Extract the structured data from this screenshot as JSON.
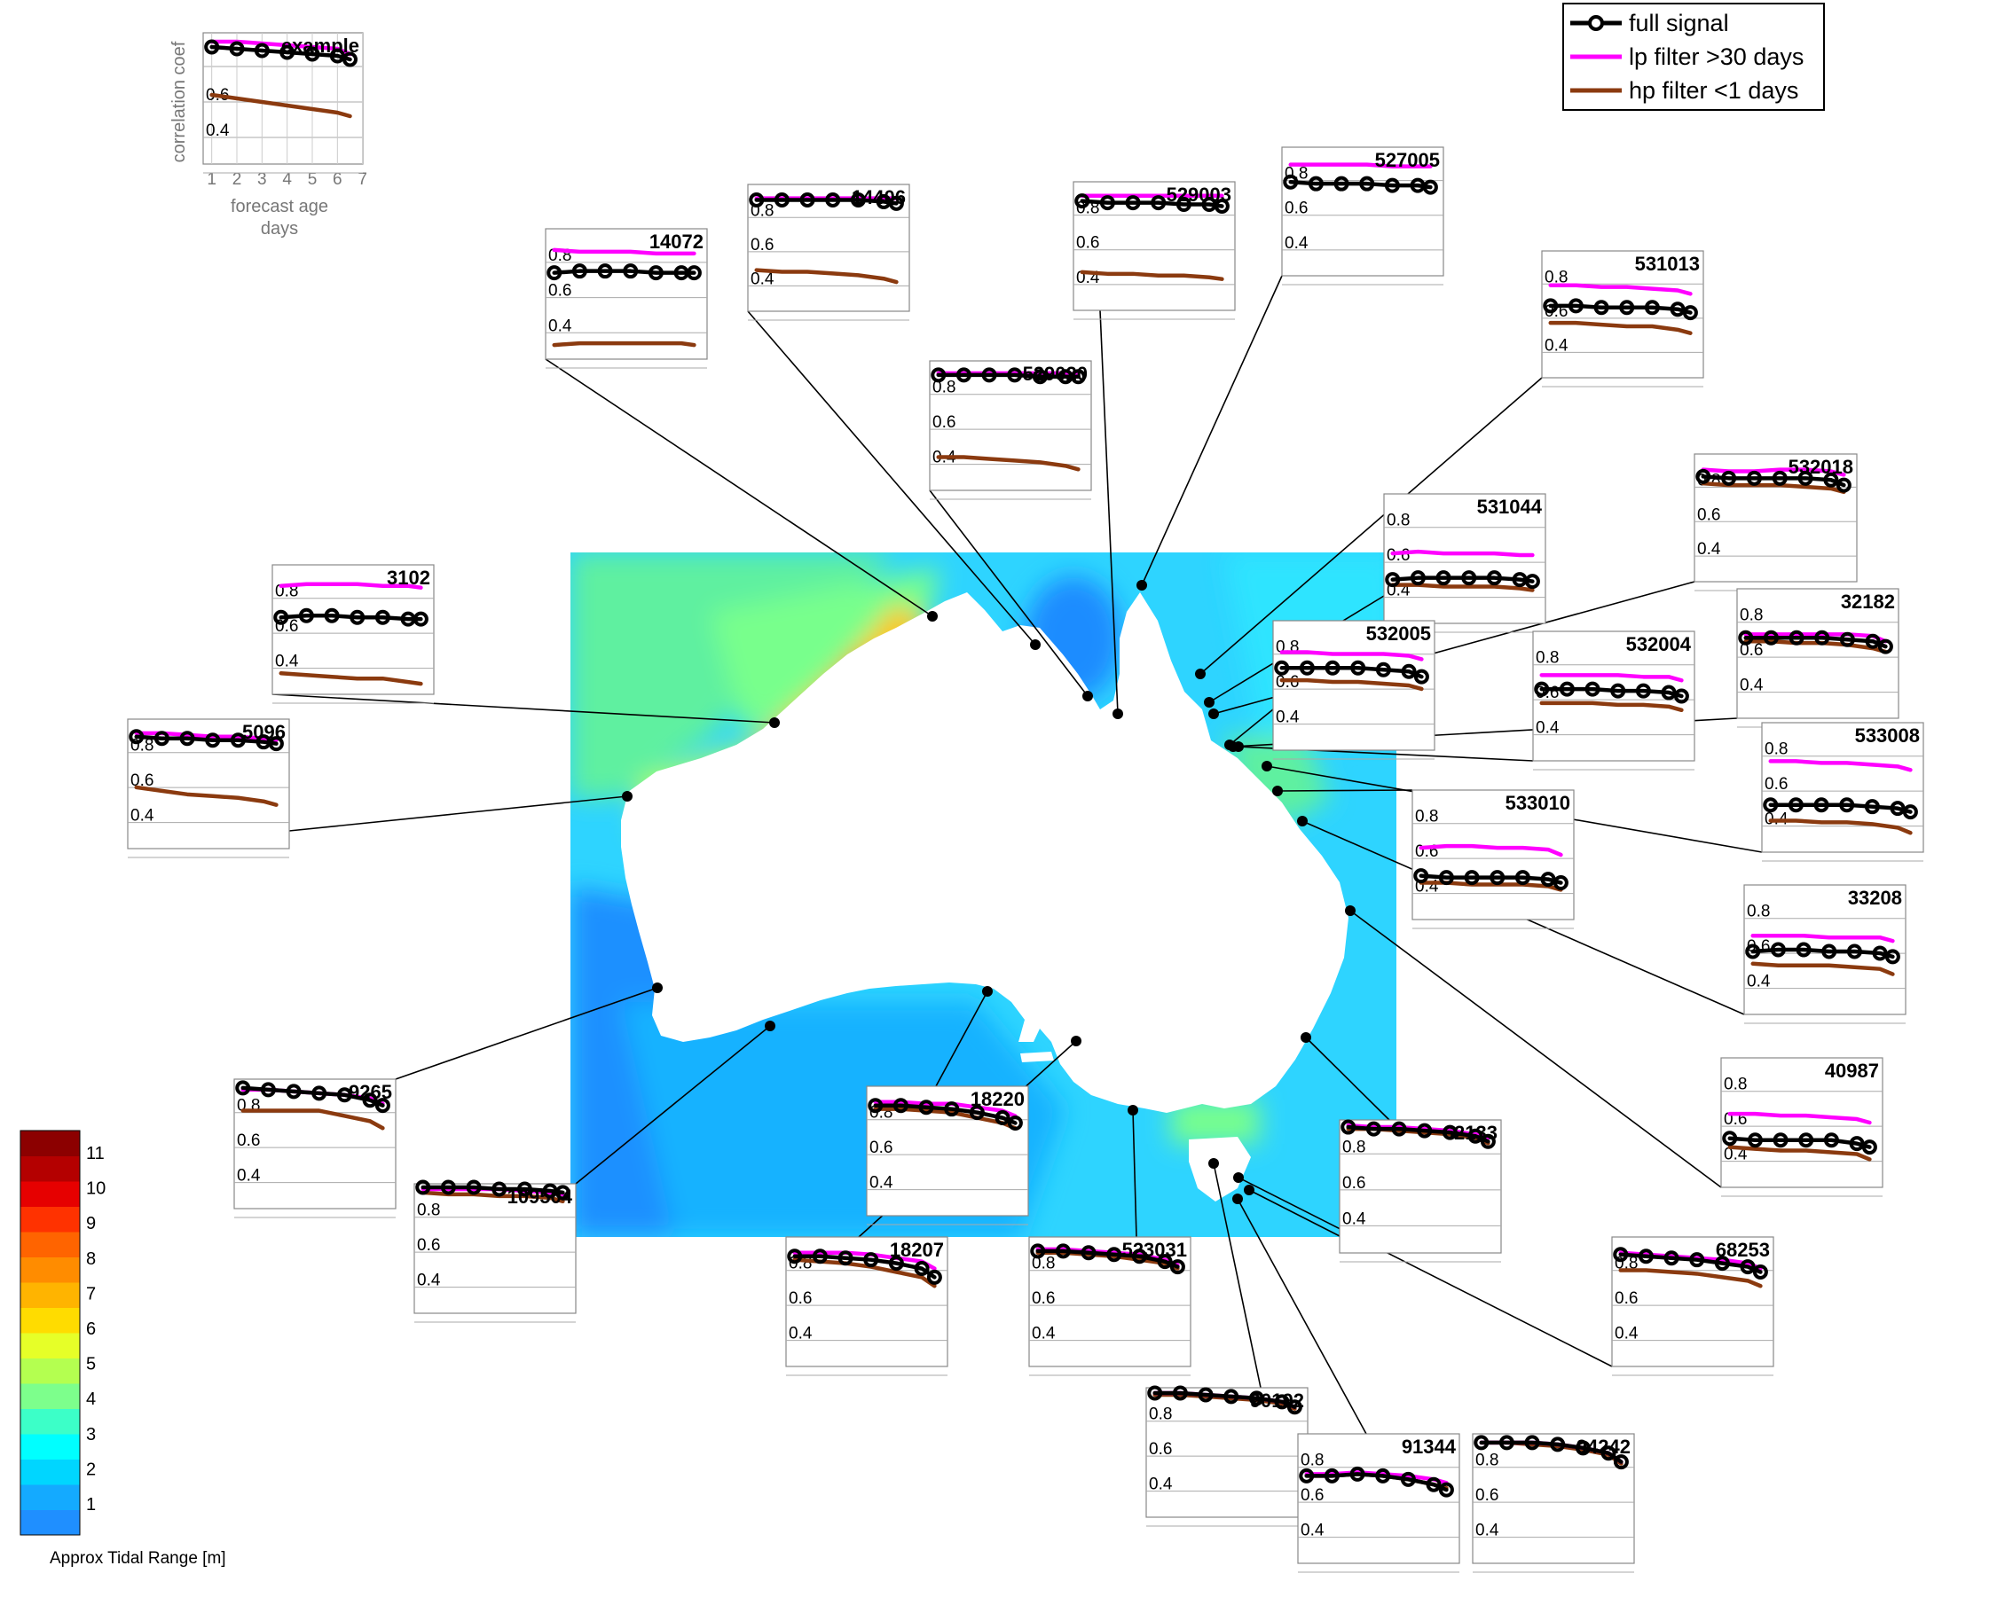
{
  "chart_data": {
    "type": "line",
    "description_kind": "map with inset line panels",
    "colorbar": {
      "label": "Approx Tidal Range [m]",
      "ticks": [
        "1",
        "2",
        "3",
        "4",
        "5",
        "6",
        "7",
        "8",
        "9",
        "10",
        "11"
      ],
      "colors": [
        "#1f8fff",
        "#14aaff",
        "#00d6ff",
        "#00ffff",
        "#3cffc8",
        "#7dff8c",
        "#b4ff50",
        "#e6ff28",
        "#ffdc00",
        "#ffb400",
        "#ff8c00",
        "#ff6400",
        "#ff3200",
        "#e60000",
        "#b40000",
        "#8c0000"
      ]
    },
    "legend": {
      "items": [
        {
          "label": "full signal",
          "color": "#000000"
        },
        {
          "label": "lp filter >30 days",
          "color": "#ff00ff"
        },
        {
          "label": "hp filter <1 days",
          "color": "#8b3a0f"
        }
      ]
    },
    "example": {
      "title": "example",
      "ylabel": "correlation coef",
      "xlabel_line1": "forecast age",
      "xlabel_line2": "days",
      "xticks": [
        "1",
        "2",
        "3",
        "4",
        "5",
        "6",
        "7"
      ],
      "yticks": [
        "0.6",
        "0.4"
      ],
      "xlim": [
        0.5,
        7.2
      ],
      "ylim": [
        0.2,
        0.9
      ]
    },
    "x_days": [
      1,
      2,
      3,
      4,
      5,
      6,
      6.5
    ],
    "panels": [
      {
        "title": "example",
        "series": {
          "full": [
            0.84,
            0.83,
            0.82,
            0.81,
            0.8,
            0.79,
            0.77
          ],
          "lp": [
            0.87,
            0.87,
            0.86,
            0.85,
            0.84,
            0.83,
            0.8
          ],
          "hp": [
            0.57,
            0.55,
            0.53,
            0.51,
            0.49,
            0.47,
            0.45
          ]
        }
      },
      {
        "title": "14406",
        "series": {
          "full": [
            0.83,
            0.83,
            0.83,
            0.83,
            0.83,
            0.82,
            0.81
          ],
          "lp": [
            0.84,
            0.84,
            0.84,
            0.84,
            0.84,
            0.84,
            0.84
          ],
          "hp": [
            0.42,
            0.41,
            0.41,
            0.4,
            0.39,
            0.37,
            0.35
          ]
        }
      },
      {
        "title": "14072",
        "series": {
          "full": [
            0.67,
            0.68,
            0.68,
            0.68,
            0.67,
            0.67,
            0.67
          ],
          "lp": [
            0.8,
            0.79,
            0.79,
            0.79,
            0.78,
            0.78,
            0.78
          ],
          "hp": [
            0.26,
            0.27,
            0.27,
            0.27,
            0.27,
            0.27,
            0.26
          ]
        }
      },
      {
        "title": "529003",
        "series": {
          "full": [
            0.81,
            0.8,
            0.8,
            0.8,
            0.79,
            0.79,
            0.78
          ],
          "lp": [
            0.84,
            0.84,
            0.84,
            0.84,
            0.84,
            0.84,
            0.84
          ],
          "hp": [
            0.4,
            0.39,
            0.39,
            0.38,
            0.38,
            0.37,
            0.36
          ]
        }
      },
      {
        "title": "527005",
        "series": {
          "full": [
            0.72,
            0.71,
            0.71,
            0.71,
            0.7,
            0.7,
            0.69
          ],
          "lp": [
            0.82,
            0.82,
            0.82,
            0.82,
            0.81,
            0.81,
            0.81
          ],
          "hp": []
        }
      },
      {
        "title": "529020",
        "series": {
          "full": [
            0.84,
            0.84,
            0.84,
            0.84,
            0.83,
            0.83,
            0.83
          ],
          "lp": [
            0.85,
            0.85,
            0.85,
            0.85,
            0.85,
            0.85,
            0.84
          ],
          "hp": [
            0.37,
            0.37,
            0.36,
            0.35,
            0.34,
            0.32,
            0.3
          ]
        }
      },
      {
        "title": "531013",
        "series": {
          "full": [
            0.6,
            0.6,
            0.59,
            0.59,
            0.59,
            0.58,
            0.56
          ],
          "lp": [
            0.72,
            0.72,
            0.71,
            0.71,
            0.7,
            0.69,
            0.67
          ],
          "hp": [
            0.5,
            0.5,
            0.49,
            0.48,
            0.48,
            0.46,
            0.44
          ]
        }
      },
      {
        "title": "3102",
        "series": {
          "full": [
            0.62,
            0.63,
            0.63,
            0.62,
            0.62,
            0.61,
            0.61
          ],
          "lp": [
            0.8,
            0.81,
            0.81,
            0.81,
            0.8,
            0.8,
            0.79
          ],
          "hp": [
            0.3,
            0.29,
            0.28,
            0.27,
            0.27,
            0.25,
            0.24
          ]
        }
      },
      {
        "title": "531044",
        "series": {
          "full": [
            0.43,
            0.44,
            0.44,
            0.44,
            0.44,
            0.43,
            0.42
          ],
          "lp": [
            0.58,
            0.59,
            0.58,
            0.58,
            0.58,
            0.57,
            0.57
          ],
          "hp": [
            0.4,
            0.4,
            0.39,
            0.39,
            0.39,
            0.38,
            0.37
          ]
        }
      },
      {
        "title": "532018",
        "series": {
          "full": [
            0.79,
            0.78,
            0.78,
            0.78,
            0.78,
            0.77,
            0.74
          ],
          "lp": [
            0.83,
            0.82,
            0.82,
            0.83,
            0.83,
            0.82,
            0.8
          ],
          "hp": [
            0.75,
            0.74,
            0.74,
            0.74,
            0.73,
            0.72,
            0.7
          ]
        }
      },
      {
        "title": "532005",
        "series": {
          "full": [
            0.65,
            0.65,
            0.65,
            0.65,
            0.64,
            0.63,
            0.6
          ],
          "lp": [
            0.74,
            0.74,
            0.73,
            0.73,
            0.73,
            0.72,
            0.7
          ],
          "hp": [
            0.58,
            0.58,
            0.57,
            0.57,
            0.56,
            0.55,
            0.53
          ]
        }
      },
      {
        "title": "32182",
        "series": {
          "full": [
            0.64,
            0.64,
            0.64,
            0.64,
            0.63,
            0.62,
            0.59
          ],
          "lp": [
            0.66,
            0.66,
            0.66,
            0.66,
            0.66,
            0.65,
            0.62
          ],
          "hp": [
            0.62,
            0.62,
            0.61,
            0.61,
            0.6,
            0.58,
            0.56
          ]
        }
      },
      {
        "title": "5096",
        "series": {
          "full": [
            0.82,
            0.81,
            0.81,
            0.8,
            0.8,
            0.79,
            0.78
          ],
          "lp": [
            0.84,
            0.84,
            0.83,
            0.82,
            0.82,
            0.81,
            0.8
          ],
          "hp": [
            0.53,
            0.51,
            0.49,
            0.48,
            0.47,
            0.45,
            0.43
          ]
        }
      },
      {
        "title": "532004",
        "series": {
          "full": [
            0.59,
            0.59,
            0.59,
            0.58,
            0.58,
            0.57,
            0.55
          ],
          "lp": [
            0.67,
            0.67,
            0.67,
            0.67,
            0.66,
            0.66,
            0.64
          ],
          "hp": [
            0.51,
            0.51,
            0.51,
            0.5,
            0.5,
            0.49,
            0.47
          ]
        }
      },
      {
        "title": "533008",
        "series": {
          "full": [
            0.45,
            0.45,
            0.45,
            0.45,
            0.44,
            0.43,
            0.41
          ],
          "lp": [
            0.7,
            0.7,
            0.69,
            0.69,
            0.68,
            0.67,
            0.65
          ],
          "hp": [
            0.36,
            0.36,
            0.35,
            0.35,
            0.34,
            0.32,
            0.29
          ]
        }
      },
      {
        "title": "533010",
        "series": {
          "full": [
            0.43,
            0.42,
            0.42,
            0.42,
            0.42,
            0.41,
            0.39
          ],
          "lp": [
            0.59,
            0.6,
            0.6,
            0.59,
            0.59,
            0.58,
            0.55
          ],
          "hp": [
            0.39,
            0.39,
            0.38,
            0.38,
            0.38,
            0.37,
            0.35
          ]
        }
      },
      {
        "title": "33208",
        "series": {
          "full": [
            0.54,
            0.55,
            0.55,
            0.54,
            0.54,
            0.53,
            0.51
          ],
          "lp": [
            0.63,
            0.63,
            0.63,
            0.62,
            0.62,
            0.62,
            0.6
          ],
          "hp": [
            0.47,
            0.46,
            0.46,
            0.46,
            0.45,
            0.44,
            0.41
          ]
        }
      },
      {
        "title": "40987",
        "series": {
          "full": [
            0.46,
            0.45,
            0.45,
            0.45,
            0.45,
            0.43,
            0.41
          ],
          "lp": [
            0.6,
            0.6,
            0.59,
            0.59,
            0.58,
            0.57,
            0.55
          ],
          "hp": [
            0.41,
            0.4,
            0.39,
            0.39,
            0.38,
            0.37,
            0.34
          ]
        }
      },
      {
        "title": "9265",
        "series": {
          "full": [
            0.87,
            0.86,
            0.85,
            0.84,
            0.83,
            0.8,
            0.77
          ],
          "lp": [
            0.86,
            0.86,
            0.85,
            0.84,
            0.83,
            0.81,
            0.78
          ],
          "hp": [
            0.74,
            0.74,
            0.74,
            0.74,
            0.71,
            0.68,
            0.64
          ]
        }
      },
      {
        "title": "109504",
        "series": {
          "full": [
            0.9,
            0.9,
            0.9,
            0.89,
            0.89,
            0.88,
            0.87
          ],
          "lp": [
            0.89,
            0.89,
            0.89,
            0.89,
            0.88,
            0.87,
            0.86
          ],
          "hp": [
            0.87,
            0.86,
            0.86,
            0.85,
            0.85,
            0.84,
            0.82
          ]
        }
      },
      {
        "title": "18220",
        "series": {
          "full": [
            0.81,
            0.81,
            0.8,
            0.79,
            0.77,
            0.74,
            0.71
          ],
          "lp": [
            0.83,
            0.83,
            0.82,
            0.82,
            0.8,
            0.78,
            0.75
          ],
          "hp": [
            0.79,
            0.79,
            0.78,
            0.77,
            0.74,
            0.71,
            0.68
          ]
        }
      },
      {
        "title": "18207",
        "series": {
          "full": [
            0.81,
            0.81,
            0.8,
            0.79,
            0.77,
            0.74,
            0.69
          ],
          "lp": [
            0.83,
            0.83,
            0.83,
            0.82,
            0.8,
            0.78,
            0.74
          ],
          "hp": [
            0.79,
            0.78,
            0.77,
            0.75,
            0.72,
            0.69,
            0.64
          ]
        }
      },
      {
        "title": "523031",
        "series": {
          "full": [
            0.84,
            0.84,
            0.83,
            0.82,
            0.81,
            0.78,
            0.75
          ],
          "lp": [
            0.85,
            0.85,
            0.84,
            0.83,
            0.82,
            0.79,
            0.76
          ],
          "hp": [
            0.83,
            0.83,
            0.82,
            0.81,
            0.79,
            0.77,
            0.74
          ]
        }
      },
      {
        "title": "62133",
        "series": {
          "full": [
            0.88,
            0.87,
            0.87,
            0.86,
            0.85,
            0.83,
            0.8
          ],
          "lp": [
            0.89,
            0.88,
            0.88,
            0.87,
            0.86,
            0.84,
            0.82
          ],
          "hp": [
            0.87,
            0.87,
            0.86,
            0.85,
            0.84,
            0.82,
            0.79
          ]
        }
      },
      {
        "title": "68253",
        "series": {
          "full": [
            0.82,
            0.81,
            0.8,
            0.79,
            0.77,
            0.75,
            0.72
          ],
          "lp": [
            0.83,
            0.82,
            0.81,
            0.8,
            0.79,
            0.77,
            0.74
          ],
          "hp": [
            0.73,
            0.73,
            0.72,
            0.71,
            0.69,
            0.67,
            0.64
          ]
        }
      },
      {
        "title": "90192",
        "series": {
          "full": [
            0.89,
            0.89,
            0.88,
            0.87,
            0.86,
            0.84,
            0.81
          ],
          "lp": [
            0.89,
            0.89,
            0.88,
            0.87,
            0.86,
            0.84,
            0.81
          ],
          "hp": [
            0.88,
            0.88,
            0.87,
            0.86,
            0.85,
            0.83,
            0.8
          ]
        }
      },
      {
        "title": "91344",
        "series": {
          "full": [
            0.68,
            0.68,
            0.69,
            0.68,
            0.66,
            0.63,
            0.6
          ],
          "lp": [
            0.69,
            0.69,
            0.7,
            0.69,
            0.68,
            0.66,
            0.64
          ],
          "hp": [
            0.68,
            0.68,
            0.69,
            0.68,
            0.66,
            0.63,
            0.61
          ]
        }
      },
      {
        "title": "94242",
        "series": {
          "full": [
            0.87,
            0.87,
            0.87,
            0.86,
            0.84,
            0.81,
            0.76
          ],
          "lp": [
            0.87,
            0.87,
            0.87,
            0.86,
            0.84,
            0.81,
            0.76
          ],
          "hp": [
            0.87,
            0.87,
            0.86,
            0.85,
            0.83,
            0.8,
            0.75
          ]
        }
      }
    ]
  }
}
